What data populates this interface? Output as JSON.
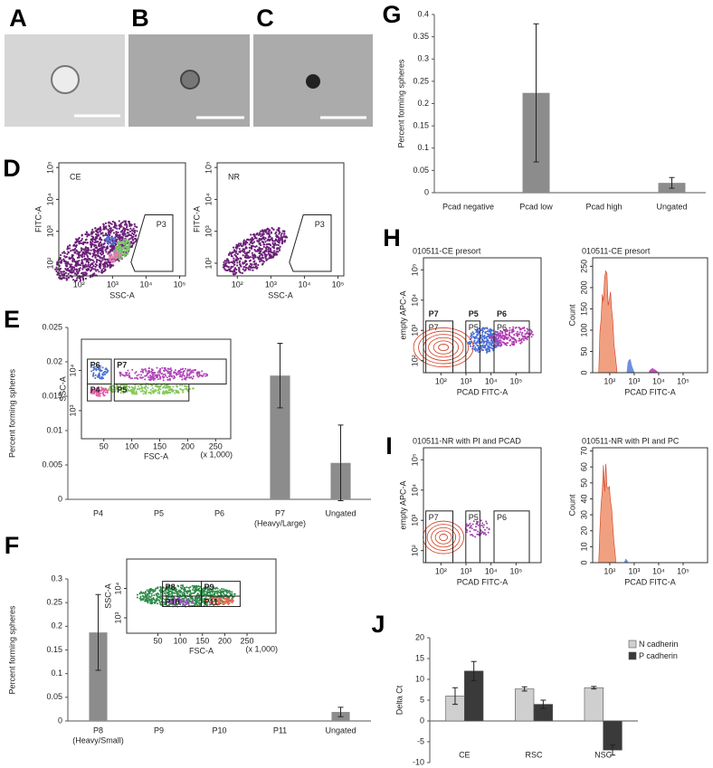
{
  "panel_labels": [
    "A",
    "B",
    "C",
    "D",
    "E",
    "F",
    "G",
    "H",
    "I",
    "J"
  ],
  "flow_plots": [
    {
      "title": "CE",
      "xlabel": "SSC-A",
      "ylabel": "FITC-A",
      "log": true,
      "xlim": [
        25,
        150000
      ],
      "ylim": [
        40,
        140000
      ],
      "xticks": [
        {
          "value": 100,
          "label": "10²"
        },
        {
          "value": 1000,
          "label": "10³"
        },
        {
          "value": 10000,
          "label": "10⁴"
        },
        {
          "value": 100000,
          "label": "10⁵"
        }
      ],
      "yticks": [
        {
          "value": 100,
          "label": "10²"
        },
        {
          "value": 1000,
          "label": "10³"
        },
        {
          "value": 10000,
          "label": "10⁴"
        },
        {
          "value": 100000,
          "label": "10⁵"
        }
      ],
      "gates": [
        "P3"
      ]
    },
    {
      "title": "NR",
      "xlabel": "SSC-A",
      "ylabel": "FITC-A",
      "log": true,
      "xlim": [
        25,
        150000
      ],
      "ylim": [
        40,
        140000
      ],
      "xticks": [
        {
          "value": 100,
          "label": "10²"
        },
        {
          "value": 1000,
          "label": "10³"
        },
        {
          "value": 10000,
          "label": "10⁴"
        },
        {
          "value": 100000,
          "label": "10⁵"
        }
      ],
      "yticks": [
        {
          "value": 100,
          "label": "10²"
        },
        {
          "value": 1000,
          "label": "10³"
        },
        {
          "value": 10000,
          "label": "10⁴"
        },
        {
          "value": 100000,
          "label": "10⁵"
        }
      ],
      "gates": [
        "P3"
      ]
    },
    {
      "title": "010511-CE presort",
      "xlabel": "PCAD FITC-A",
      "ylabel": "empty APC-A",
      "log": true,
      "xlim": [
        20,
        1000000
      ],
      "ylim": [
        40,
        250000
      ],
      "xticks": [
        {
          "value": 100,
          "label": "10²"
        },
        {
          "value": 1000,
          "label": "10³"
        },
        {
          "value": 10000,
          "label": "10⁴"
        },
        {
          "value": 100000,
          "label": "10⁵"
        }
      ],
      "yticks": [
        {
          "value": 100,
          "label": "10²"
        },
        {
          "value": 1000,
          "label": "10³"
        },
        {
          "value": 10000,
          "label": "10⁴"
        },
        {
          "value": 100000,
          "label": "10⁵"
        }
      ],
      "gate_headers": [
        "P7",
        "P5",
        "P6"
      ],
      "gates": [
        "P7",
        "P5",
        "P6"
      ]
    },
    {
      "title": "010511-NR with PI and PCAD",
      "xlabel": "PCAD FITC-A",
      "ylabel": "empty APC-A",
      "log": true,
      "xlim": [
        20,
        1000000
      ],
      "ylim": [
        40,
        250000
      ],
      "xticks": [
        {
          "value": 100,
          "label": "10²"
        },
        {
          "value": 1000,
          "label": "10³"
        },
        {
          "value": 10000,
          "label": "10⁴"
        },
        {
          "value": 100000,
          "label": "10⁵"
        }
      ],
      "yticks": [
        {
          "value": 100,
          "label": "10²"
        },
        {
          "value": 1000,
          "label": "10³"
        },
        {
          "value": 10000,
          "label": "10⁴"
        },
        {
          "value": 100000,
          "label": "10⁵"
        }
      ],
      "gates": [
        "P7",
        "P5",
        "P6"
      ]
    }
  ],
  "histograms": [
    {
      "title": "010511-CE presort",
      "xlabel": "PCAD FITC-A",
      "ylabel": "Count",
      "xlim": [
        20,
        1000000
      ],
      "ylim": [
        0,
        270
      ],
      "yticks": [
        0,
        50,
        100,
        150,
        200,
        250
      ],
      "xticks": [
        {
          "value": 100,
          "label": "10²"
        },
        {
          "value": 1000,
          "label": "10³"
        },
        {
          "value": 10000,
          "label": "10⁴"
        },
        {
          "value": 100000,
          "label": "10⁵"
        }
      ]
    },
    {
      "title": "010511-NR with PI and PC",
      "xlabel": "PCAD FITC-A",
      "ylabel": "Count",
      "xlim": [
        20,
        1000000
      ],
      "ylim": [
        0,
        72
      ],
      "yticks": [
        0,
        10,
        20,
        30,
        40,
        50,
        60,
        70
      ],
      "xticks": [
        {
          "value": 100,
          "label": "10²"
        },
        {
          "value": 1000,
          "label": "10³"
        },
        {
          "value": 10000,
          "label": "10⁴"
        },
        {
          "value": 100000,
          "label": "10⁵"
        }
      ]
    }
  ],
  "chart_data": [
    {
      "type": "bar",
      "ylabel": "Percent forming spheres",
      "categories": [
        "P4",
        "P5",
        "P6",
        "P7",
        "Ungated"
      ],
      "category_notes": [
        null,
        null,
        null,
        "(Heavy/Large)",
        null
      ],
      "values": [
        0,
        0,
        0,
        0.018,
        0.0053
      ],
      "errors": [
        0,
        0,
        0,
        0.0047,
        0.0055
      ],
      "color": "#8c8c8c",
      "ylim": [
        0,
        0.025
      ],
      "yticks": [
        0,
        0.005,
        0.01,
        0.015,
        0.02,
        0.025
      ],
      "inset": {
        "xlabel": "FSC-A",
        "ylabel": "SSC-A",
        "xlim": [
          10,
          277
        ],
        "xticks": [
          50,
          100,
          150,
          200,
          250
        ],
        "xnote": "(x 1,000)",
        "ylim": [
          200,
          60000
        ],
        "yticks": [
          {
            "value": 1000,
            "label": "10³"
          },
          {
            "value": 10000,
            "label": "10⁴"
          }
        ],
        "gates": [
          "P6",
          "P7",
          "P4",
          "P5"
        ]
      }
    },
    {
      "type": "bar",
      "ylabel": "Percent forming spheres",
      "categories": [
        "P8",
        "P9",
        "P10",
        "P11",
        "Ungated"
      ],
      "category_notes": [
        "(Heavy/Small)",
        null,
        null,
        null,
        null
      ],
      "values": [
        0.187,
        0,
        0,
        0,
        0.019
      ],
      "errors": [
        0.08,
        0,
        0,
        0,
        0.01
      ],
      "color": "#8c8c8c",
      "ylim": [
        0,
        0.3
      ],
      "yticks": [
        0,
        0.05,
        0.1,
        0.15,
        0.2,
        0.25,
        0.3
      ],
      "inset": {
        "xlabel": "FSC-A",
        "ylabel": "SSC-A",
        "xlim": [
          -20,
          315
        ],
        "xticks": [
          50,
          100,
          150,
          200,
          250
        ],
        "xnote": "(x 1,000)",
        "ylim": [
          300,
          100000
        ],
        "yticks": [
          {
            "value": 1000,
            "label": "10³"
          },
          {
            "value": 10000,
            "label": "10⁴"
          }
        ],
        "gates": [
          "P8",
          "P9",
          "P10",
          "P11"
        ]
      }
    },
    {
      "type": "bar",
      "ylabel": "Percent forming spheres",
      "categories": [
        "Pcad negative",
        "Pcad low",
        "Pcad high",
        "Ungated"
      ],
      "values": [
        0,
        0.224,
        0,
        0.022
      ],
      "errors": [
        0,
        0.155,
        0,
        0.012
      ],
      "color": "#8c8c8c",
      "ylim": [
        0,
        0.4
      ],
      "yticks": [
        0,
        0.05,
        0.1,
        0.15,
        0.2,
        0.25,
        0.3,
        0.35,
        0.4
      ]
    },
    {
      "type": "bar",
      "ylabel": "Delta Ct",
      "categories": [
        "CE",
        "RSC",
        "NSC"
      ],
      "ylim": [
        -10,
        20
      ],
      "yticks": [
        -10,
        -5,
        0,
        5,
        10,
        15,
        20
      ],
      "series": [
        {
          "name": "N cadherin",
          "color": "#cfcfcf",
          "values": [
            6,
            7.7,
            8
          ],
          "errors": [
            2,
            0.5,
            0.3
          ]
        },
        {
          "name": "P cadherin",
          "color": "#3a3a3a",
          "values": [
            12,
            4,
            -7
          ],
          "errors": [
            2.3,
            1,
            1.2
          ]
        }
      ]
    }
  ]
}
